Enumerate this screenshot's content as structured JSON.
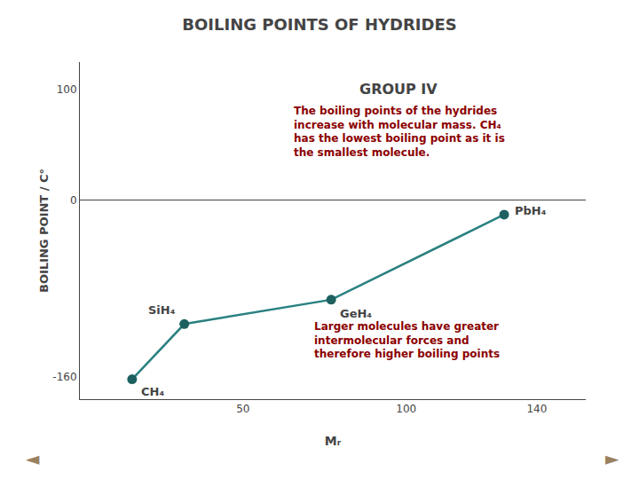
{
  "chart_data": {
    "type": "line",
    "title": "BOILING POINTS OF HYDRIDES",
    "xlabel": "Mᵣ",
    "ylabel": "BOILING POINT / C°",
    "x": [
      16,
      32,
      77,
      130
    ],
    "values": [
      -162,
      -112,
      -90,
      -13
    ],
    "labels": [
      "CH₄",
      "SiH₄",
      "GeH₄",
      "PbH₄"
    ],
    "color": "#2A8080",
    "colors": [
      "#1E6060",
      "#1E6060",
      "#1E6060",
      "#1E6060"
    ],
    "marker": "circle",
    "xlim": [
      0,
      155
    ],
    "ylim": [
      -180,
      125
    ],
    "xticks": [
      50,
      100,
      140
    ],
    "yticks": [
      100,
      0,
      -160
    ],
    "grid": false,
    "annotations": [
      {
        "text": "GROUP IV"
      },
      {
        "text": "The boiling points of the hydrides\nincrease with molecular mass. CH₄\nhas the lowest boiling point as it is\nthe smallest molecule.",
        "color": "#8B0000"
      },
      {
        "text": "Larger molecules have greater\nintermolecular forces and\ntherefore higher boiling points",
        "color": "#8B0000"
      },
      {
        "text": "◄",
        "color": "#9B8060"
      },
      {
        "text": "►",
        "color": "#9B8060"
      }
    ]
  }
}
